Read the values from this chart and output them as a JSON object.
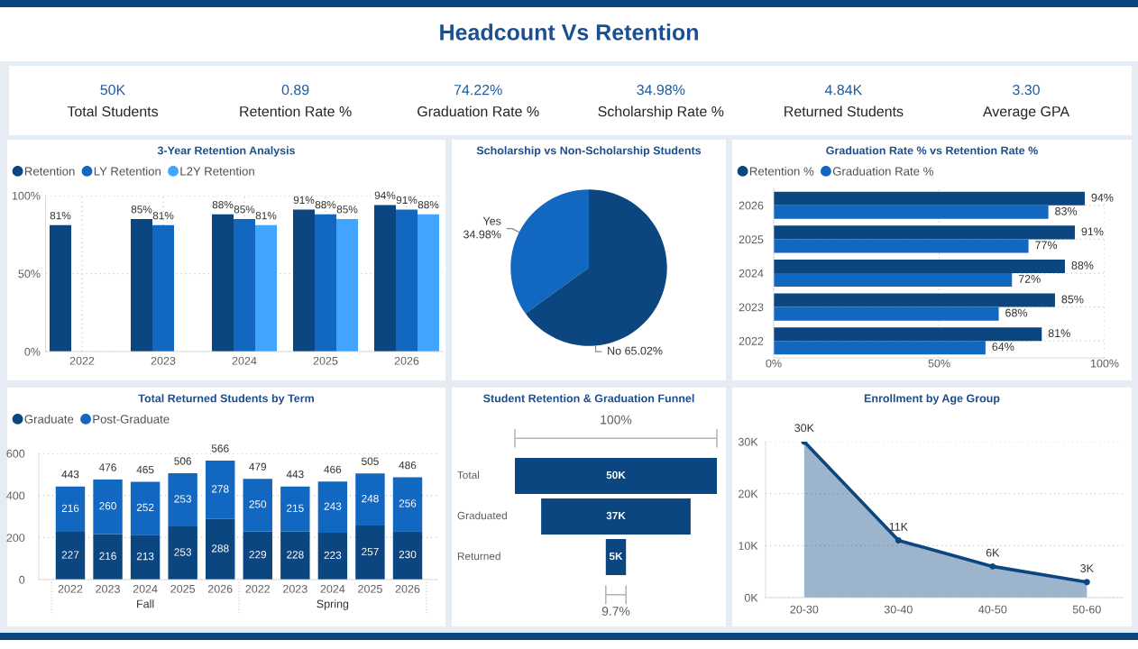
{
  "chart_data": [
    {
      "type": "other",
      "title": "Headcount Vs Retention",
      "annotations": [
        "50K",
        "Total Students",
        "0.89",
        "Retention Rate %",
        "74.22%",
        "Graduation Rate %",
        "34.98%",
        "Scholarship Rate %",
        "4.84K",
        "Returned Students",
        "3.30",
        "Average GPA"
      ]
    },
    {
      "type": "bar",
      "title": "3-Year Retention Analysis",
      "categories": [
        "2022",
        "2023",
        "2024",
        "2025",
        "2026"
      ],
      "series": [
        {
          "name": "Retention",
          "color": "#0b4680",
          "values": [
            81,
            85,
            88,
            91,
            94
          ],
          "value_labels": [
            "81%",
            "85%",
            "88%",
            "91%",
            "94%"
          ]
        },
        {
          "name": "LY Retention",
          "color": "#1267c0",
          "values": [
            null,
            81,
            85,
            88,
            91
          ],
          "value_labels": [
            null,
            "81%",
            "85%",
            "88%",
            "91%"
          ]
        },
        {
          "name": "L2Y Retention",
          "color": "#41a5ff",
          "values": [
            null,
            null,
            81,
            85,
            88
          ],
          "value_labels": [
            null,
            null,
            "81%",
            "85%",
            "88%"
          ]
        }
      ],
      "ylim": [
        0,
        100
      ],
      "yticks": [
        {
          "value": 0,
          "label": "0%"
        },
        {
          "value": 50,
          "label": "50%"
        },
        {
          "value": 100,
          "label": "100%"
        }
      ],
      "grid": true,
      "legend": "top left"
    },
    {
      "type": "pie",
      "title": "Scholarship vs Non-Scholarship Students",
      "categories": [
        "Yes",
        "No"
      ],
      "values": [
        34.98,
        65.02
      ],
      "colors": [
        "#1267c0",
        "#0b4680"
      ],
      "value_labels": [
        "34.98%",
        "65.02%"
      ]
    },
    {
      "type": "bar",
      "orientation": "horizontal",
      "title": "Graduation Rate % vs Retention Rate %",
      "categories": [
        "2026",
        "2025",
        "2024",
        "2023",
        "2022"
      ],
      "series": [
        {
          "name": "Retention %",
          "color": "#0b4680",
          "values": [
            94,
            91,
            88,
            85,
            81
          ],
          "value_labels": [
            "94%",
            "91%",
            "88%",
            "85%",
            "81%"
          ]
        },
        {
          "name": "Graduation Rate %",
          "color": "#1267c0",
          "values": [
            83,
            77,
            72,
            68,
            64
          ],
          "value_labels": [
            "83%",
            "77%",
            "72%",
            "68%",
            "64%"
          ]
        }
      ],
      "xlim": [
        0,
        100
      ],
      "xticks": [
        {
          "value": 0,
          "label": "0%"
        },
        {
          "value": 50,
          "label": "50%"
        },
        {
          "value": 100,
          "label": "100%"
        }
      ],
      "grid": true,
      "legend": "top left"
    },
    {
      "type": "bar",
      "stacked": true,
      "title": "Total Returned Students by Term",
      "categories": [
        "2022",
        "2023",
        "2024",
        "2025",
        "2026",
        "2022",
        "2023",
        "2024",
        "2025",
        "2026"
      ],
      "annotations": [
        "Fall",
        "Spring"
      ],
      "series": [
        {
          "name": "Graduate",
          "color": "#0b4680",
          "values": [
            227,
            216,
            213,
            253,
            288,
            229,
            228,
            223,
            257,
            230
          ]
        },
        {
          "name": "Post-Graduate",
          "color": "#1267c0",
          "values": [
            216,
            260,
            252,
            253,
            278,
            250,
            215,
            243,
            248,
            256
          ]
        }
      ],
      "data_labels": true,
      "totals": [
        "443",
        "476",
        "465",
        "506",
        "566",
        "479",
        "443",
        "466",
        "505",
        "486"
      ],
      "ylim": [
        0,
        600
      ],
      "yticks": [
        0,
        200,
        400,
        600
      ],
      "grid": "y",
      "legend": "top left"
    },
    {
      "type": "other",
      "title": "Student Retention & Graduation Funnel",
      "categories": [
        "Total",
        "Graduated",
        "Returned"
      ],
      "values": [
        50000,
        37000,
        5000
      ],
      "value_labels": [
        "50K",
        "37K",
        "5K"
      ],
      "color": "#0b4680",
      "annotations": [
        "100%",
        "9.7%"
      ]
    },
    {
      "type": "area",
      "title": "Enrollment by Age Group",
      "categories": [
        "20-30",
        "30-40",
        "40-50",
        "50-60"
      ],
      "values": [
        30000,
        11000,
        6000,
        3000
      ],
      "value_labels": [
        "30K",
        "11K",
        "6K",
        "3K"
      ],
      "color": "#0b4680",
      "ylim": [
        0,
        30000
      ],
      "yticks": [
        {
          "value": 0,
          "label": "0K"
        },
        {
          "value": 10000,
          "label": "10K"
        },
        {
          "value": 20000,
          "label": "20K"
        },
        {
          "value": 30000,
          "label": "30K"
        }
      ],
      "grid": "y",
      "marker": "circle"
    }
  ]
}
